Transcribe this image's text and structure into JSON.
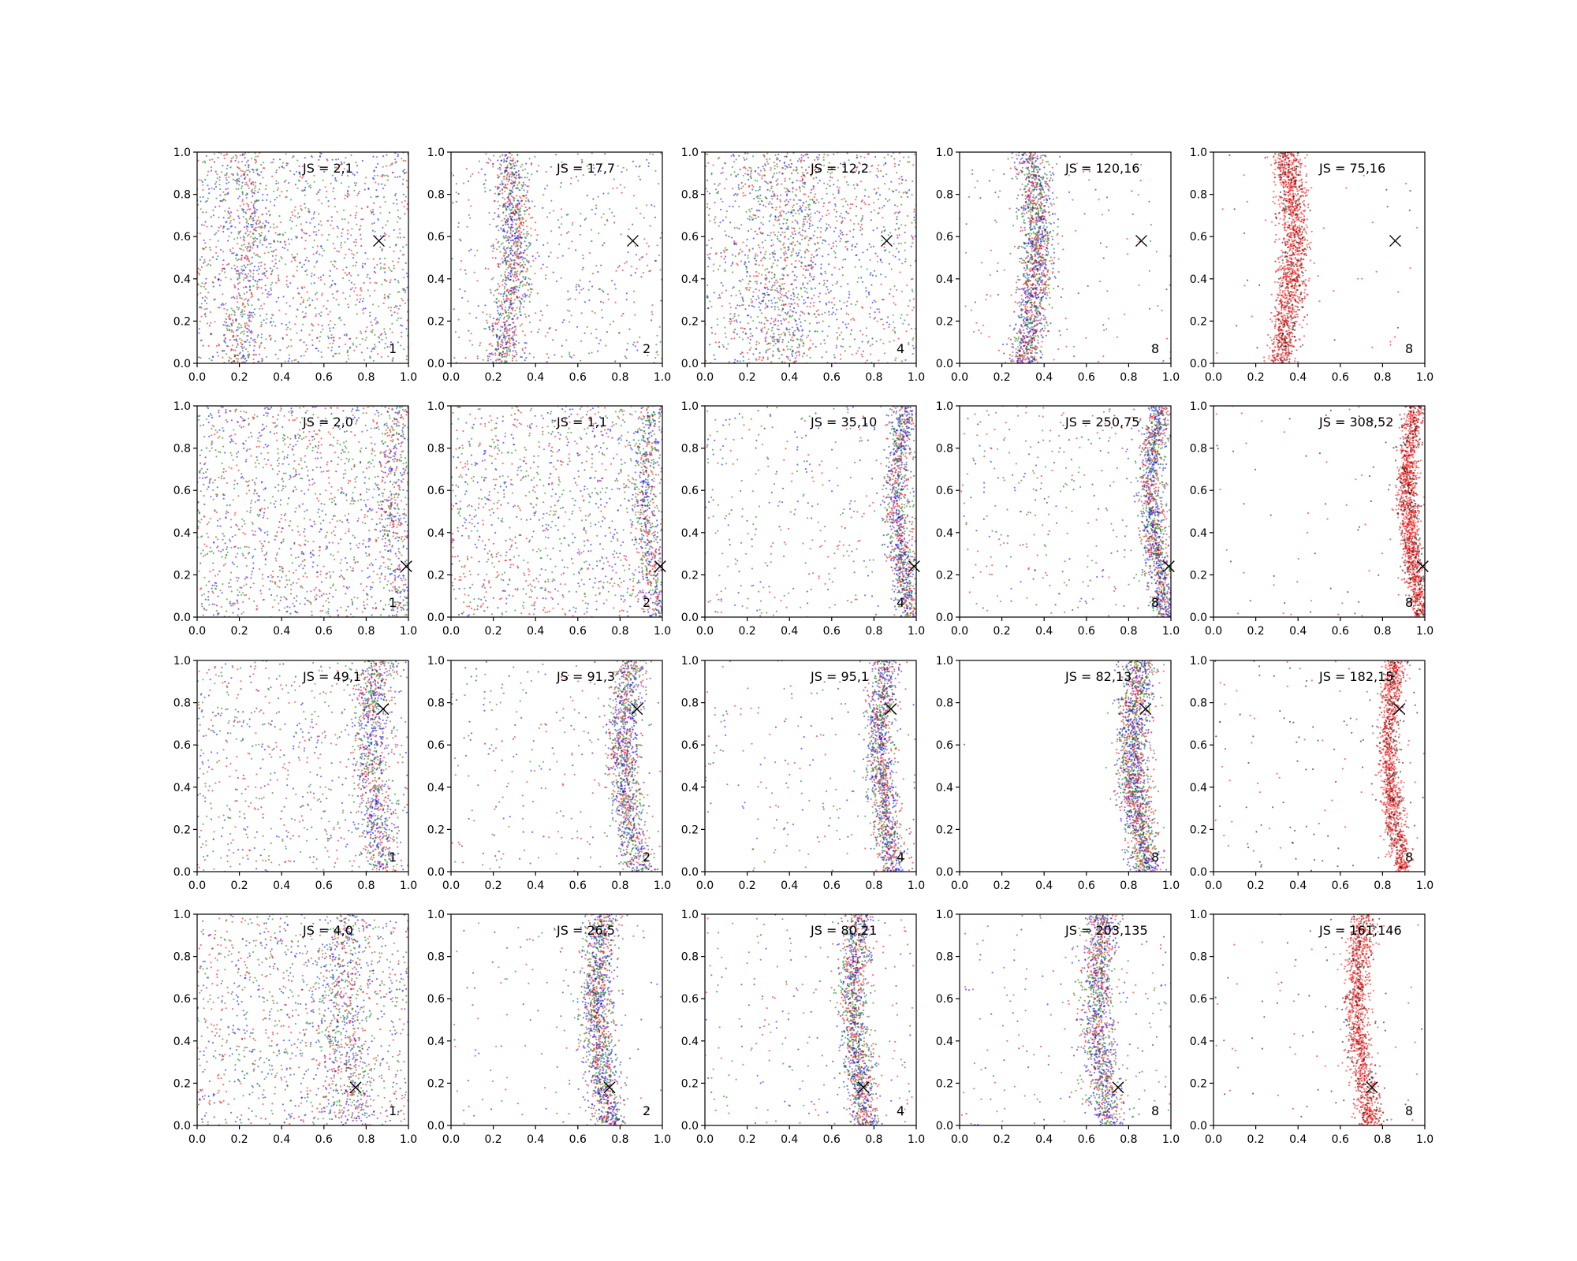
{
  "chart_data": {
    "type": "scatter",
    "grid": false,
    "layout": "4 rows x 5 columns of subplots",
    "series_colors": {
      "blue": "#0000ff",
      "green": "#008000",
      "red": "#ff0000",
      "black": "#000000"
    },
    "marker": "x",
    "xlim": [
      0,
      1
    ],
    "ylim": [
      0,
      1
    ],
    "ticks": [
      0.0,
      0.2,
      0.4,
      0.6,
      0.8,
      1.0
    ],
    "tick_labels": [
      "0.0",
      "0.2",
      "0.4",
      "0.6",
      "0.8",
      "1.0"
    ],
    "panels": [
      {
        "row": 0,
        "col": 0,
        "label": "JS = 2,1",
        "index_label": "1",
        "colors": [
          "blue",
          "green",
          "red"
        ],
        "band_offset": 0.2,
        "band_side": "left",
        "band_width": 0.05,
        "band_frac": 0.25,
        "bg_density": 1.0,
        "cross": [
          0.86,
          0.58
        ],
        "palette_weights": [
          1,
          1,
          1
        ]
      },
      {
        "row": 0,
        "col": 1,
        "label": "JS = 17,7",
        "index_label": "2",
        "colors": [
          "blue",
          "green",
          "red"
        ],
        "band_offset": 0.25,
        "band_side": "left",
        "band_width": 0.04,
        "band_frac": 0.55,
        "bg_density": 0.6,
        "cross": [
          0.86,
          0.58
        ],
        "palette_weights": [
          1,
          1,
          1
        ]
      },
      {
        "row": 0,
        "col": 2,
        "label": "JS = 12,2",
        "index_label": "4",
        "colors": [
          "blue",
          "green",
          "red"
        ],
        "band_offset": 0.35,
        "band_side": "left",
        "band_width": 0.12,
        "band_frac": 0.4,
        "bg_density": 1.0,
        "cross": [
          0.86,
          0.58
        ],
        "palette_weights": [
          1,
          1,
          1
        ]
      },
      {
        "row": 0,
        "col": 3,
        "label": "JS = 120,16",
        "index_label": "8",
        "colors": [
          "blue",
          "green",
          "red"
        ],
        "band_offset": 0.32,
        "band_side": "left",
        "band_width": 0.04,
        "band_frac": 0.8,
        "bg_density": 0.4,
        "cross": [
          0.86,
          0.58
        ],
        "palette_weights": [
          1,
          1,
          1
        ]
      },
      {
        "row": 0,
        "col": 4,
        "label": "JS = 75,16",
        "index_label": "8",
        "colors": [
          "black",
          "red"
        ],
        "band_offset": 0.33,
        "band_side": "left",
        "band_width": 0.035,
        "band_frac": 0.85,
        "bg_density": 0.15,
        "cross": [
          0.86,
          0.58
        ],
        "palette_weights": [
          1,
          1
        ]
      },
      {
        "row": 1,
        "col": 0,
        "label": "JS = 2,0",
        "index_label": "1",
        "colors": [
          "blue",
          "green",
          "red"
        ],
        "band_offset": 0.97,
        "band_side": "right",
        "band_width": 0.04,
        "band_frac": 0.2,
        "bg_density": 1.0,
        "cross": [
          0.99,
          0.24
        ],
        "palette_weights": [
          1,
          1,
          1
        ]
      },
      {
        "row": 1,
        "col": 1,
        "label": "JS = 1,1",
        "index_label": "2",
        "colors": [
          "blue",
          "green",
          "red"
        ],
        "band_offset": 0.97,
        "band_side": "right",
        "band_width": 0.03,
        "band_frac": 0.3,
        "bg_density": 1.0,
        "cross": [
          0.99,
          0.24
        ],
        "palette_weights": [
          1,
          1,
          1
        ]
      },
      {
        "row": 1,
        "col": 2,
        "label": "JS = 35,10",
        "index_label": "4",
        "colors": [
          "blue",
          "green",
          "red"
        ],
        "band_offset": 0.96,
        "band_side": "right",
        "band_width": 0.03,
        "band_frac": 0.6,
        "bg_density": 0.5,
        "cross": [
          0.99,
          0.24
        ],
        "palette_weights": [
          1,
          1,
          1
        ]
      },
      {
        "row": 1,
        "col": 3,
        "label": "JS = 250,75",
        "index_label": "8",
        "colors": [
          "blue",
          "green",
          "red"
        ],
        "band_offset": 0.96,
        "band_side": "right",
        "band_width": 0.03,
        "band_frac": 0.7,
        "bg_density": 0.6,
        "cross": [
          0.99,
          0.24
        ],
        "palette_weights": [
          1,
          1,
          1
        ]
      },
      {
        "row": 1,
        "col": 4,
        "label": "JS = 308,52",
        "index_label": "8",
        "colors": [
          "black",
          "red"
        ],
        "band_offset": 0.97,
        "band_side": "right",
        "band_width": 0.025,
        "band_frac": 0.8,
        "bg_density": 0.2,
        "cross": [
          0.99,
          0.24
        ],
        "palette_weights": [
          1,
          1
        ]
      },
      {
        "row": 2,
        "col": 0,
        "label": "JS = 49,1",
        "index_label": "1",
        "colors": [
          "blue",
          "green",
          "red"
        ],
        "band_offset": 0.87,
        "band_side": "right",
        "band_width": 0.04,
        "band_frac": 0.5,
        "bg_density": 0.8,
        "cross": [
          0.88,
          0.77
        ],
        "palette_weights": [
          1,
          1,
          1
        ]
      },
      {
        "row": 2,
        "col": 1,
        "label": "JS = 91,3",
        "index_label": "2",
        "colors": [
          "blue",
          "green",
          "red"
        ],
        "band_offset": 0.87,
        "band_side": "right",
        "band_width": 0.04,
        "band_frac": 0.7,
        "bg_density": 0.4,
        "cross": [
          0.88,
          0.77
        ],
        "palette_weights": [
          1,
          1,
          1
        ]
      },
      {
        "row": 2,
        "col": 2,
        "label": "JS = 95,1",
        "index_label": "4",
        "colors": [
          "blue",
          "green",
          "red"
        ],
        "band_offset": 0.88,
        "band_side": "right",
        "band_width": 0.035,
        "band_frac": 0.7,
        "bg_density": 0.35,
        "cross": [
          0.88,
          0.77
        ],
        "palette_weights": [
          1,
          1,
          1
        ]
      },
      {
        "row": 2,
        "col": 3,
        "label": "JS = 82,13",
        "index_label": "8",
        "colors": [
          "blue",
          "green",
          "red"
        ],
        "band_offset": 0.87,
        "band_side": "right",
        "band_width": 0.04,
        "band_frac": 0.95,
        "bg_density": 0.02,
        "cross": [
          0.88,
          0.77
        ],
        "palette_weights": [
          1,
          1,
          1
        ]
      },
      {
        "row": 2,
        "col": 4,
        "label": "JS = 182,15",
        "index_label": "8",
        "colors": [
          "black",
          "red"
        ],
        "band_offset": 0.88,
        "band_side": "right",
        "band_width": 0.025,
        "band_frac": 0.7,
        "bg_density": 0.25,
        "cross": [
          0.88,
          0.77
        ],
        "palette_weights": [
          1,
          1
        ]
      },
      {
        "row": 3,
        "col": 0,
        "label": "JS = 4,0",
        "index_label": "1",
        "colors": [
          "blue",
          "green",
          "red"
        ],
        "band_offset": 0.73,
        "band_side": "right",
        "band_width": 0.06,
        "band_frac": 0.35,
        "bg_density": 1.0,
        "cross": [
          0.75,
          0.18
        ],
        "palette_weights": [
          1,
          1,
          1
        ]
      },
      {
        "row": 3,
        "col": 1,
        "label": "JS = 26,5",
        "index_label": "2",
        "colors": [
          "blue",
          "green",
          "red"
        ],
        "band_offset": 0.74,
        "band_side": "right",
        "band_width": 0.04,
        "band_frac": 0.75,
        "bg_density": 0.3,
        "cross": [
          0.75,
          0.18
        ],
        "palette_weights": [
          1,
          1,
          1
        ]
      },
      {
        "row": 3,
        "col": 2,
        "label": "JS = 80,21",
        "index_label": "4",
        "colors": [
          "blue",
          "green",
          "red"
        ],
        "band_offset": 0.75,
        "band_side": "right",
        "band_width": 0.035,
        "band_frac": 0.7,
        "bg_density": 0.4,
        "cross": [
          0.75,
          0.18
        ],
        "palette_weights": [
          1,
          1,
          1
        ]
      },
      {
        "row": 3,
        "col": 3,
        "label": "JS = 203,135",
        "index_label": "8",
        "colors": [
          "blue",
          "green",
          "red"
        ],
        "band_offset": 0.7,
        "band_side": "right",
        "band_width": 0.04,
        "band_frac": 0.7,
        "bg_density": 0.4,
        "cross": [
          0.75,
          0.18
        ],
        "palette_weights": [
          1,
          1,
          1
        ]
      },
      {
        "row": 3,
        "col": 4,
        "label": "JS = 161,146",
        "index_label": "8",
        "colors": [
          "black",
          "red"
        ],
        "band_offset": 0.73,
        "band_side": "right",
        "band_width": 0.03,
        "band_frac": 0.7,
        "bg_density": 0.15,
        "cross": [
          0.75,
          0.18
        ],
        "palette_weights": [
          1,
          1
        ]
      }
    ]
  }
}
